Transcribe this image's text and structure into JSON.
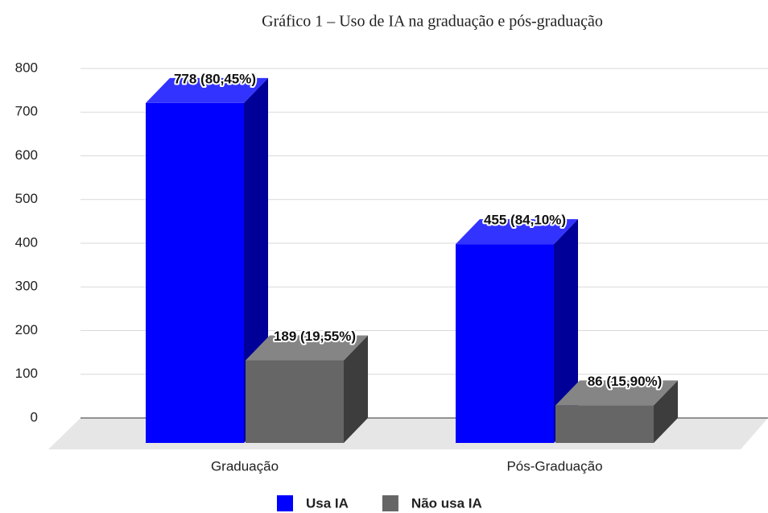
{
  "chart_data": {
    "type": "bar3d",
    "title": "Gráfico 1 – Uso de IA na graduação e pós-graduação",
    "categories": [
      "Graduação",
      "Pós-Graduação"
    ],
    "series": [
      {
        "name": "Usa IA",
        "color": "#0000ff",
        "values": [
          778,
          455
        ],
        "value_labels": [
          "778 (80,45%)",
          "455 (84,10%)"
        ]
      },
      {
        "name": "Não usa IA",
        "color": "#666666",
        "values": [
          189,
          86
        ],
        "value_labels": [
          "189 (19,55%)",
          "86 (15,90%)"
        ]
      }
    ],
    "ylim": [
      0,
      800
    ],
    "yticks": [
      0,
      100,
      200,
      300,
      400,
      500,
      600,
      700,
      800
    ],
    "grid": true,
    "legend": "bottom"
  }
}
